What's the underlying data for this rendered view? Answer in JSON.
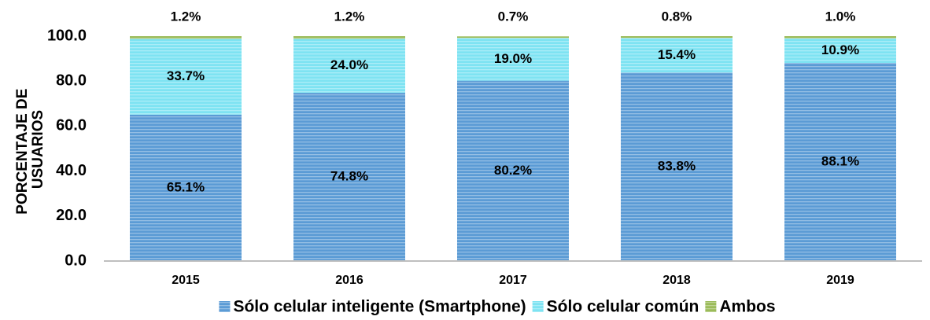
{
  "chart_data": {
    "type": "stacked_bar",
    "ylabel": [
      "PORCENTAJE DE",
      "USUARIOS"
    ],
    "categories": [
      "2015",
      "2016",
      "2017",
      "2018",
      "2019"
    ],
    "series": [
      {
        "name": "Sólo celular inteligente (Smartphone)",
        "color": "#5b9bd5",
        "values": [
          65.1,
          74.8,
          80.2,
          83.8,
          88.1
        ],
        "value_labels": [
          "65.1%",
          "74.8%",
          "80.2%",
          "83.8%",
          "88.1%"
        ]
      },
      {
        "name": "Sólo celular común",
        "color": "#7ee3f2",
        "values": [
          33.7,
          24.0,
          19.0,
          15.4,
          10.9
        ],
        "value_labels": [
          "33.7%",
          "24.0%",
          "19.0%",
          "15.4%",
          "10.9%"
        ]
      },
      {
        "name": "Ambos",
        "color": "#9bbb59",
        "values": [
          1.2,
          1.2,
          0.7,
          0.8,
          1.0
        ],
        "value_labels": [
          "1.2%",
          "1.2%",
          "0.7%",
          "0.8%",
          "1.0%"
        ]
      }
    ],
    "ylim": [
      0,
      100
    ],
    "yticks": [
      {
        "value": 0,
        "label": "0.0"
      },
      {
        "value": 20,
        "label": "20.0"
      },
      {
        "value": 40,
        "label": "40.0"
      },
      {
        "value": 60,
        "label": "60.0"
      },
      {
        "value": 80,
        "label": "80.0"
      },
      {
        "value": 100,
        "label": "100.0"
      }
    ],
    "grid": false,
    "legend": "bottom"
  }
}
